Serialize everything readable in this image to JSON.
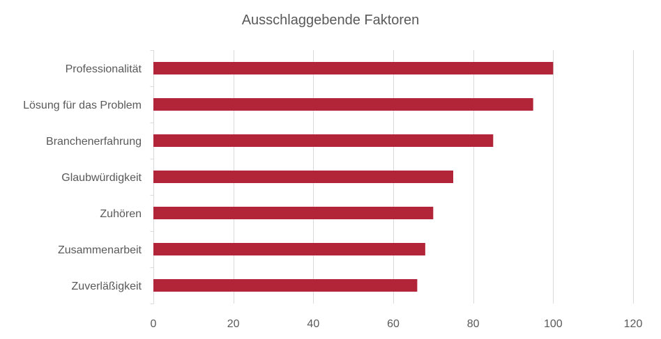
{
  "chart_data": {
    "type": "bar",
    "orientation": "horizontal",
    "title": "Ausschlaggebende Faktoren",
    "categories": [
      "Professionalität",
      "Lösung für das Problem",
      "Branchenerfahrung",
      "Glaubwürdigkeit",
      "Zuhören",
      "Zusammenarbeit",
      "Zuverläßigkeit"
    ],
    "values": [
      100,
      95,
      85,
      75,
      70,
      68,
      66
    ],
    "xlim": [
      0,
      120
    ],
    "xticks": [
      0,
      20,
      40,
      60,
      80,
      100,
      120
    ],
    "xlabel": "",
    "ylabel": "",
    "grid": "vertical",
    "legend": "none",
    "bar_color": "#B22538",
    "grid_color": "#D9D9D9",
    "text_color": "#595959"
  }
}
